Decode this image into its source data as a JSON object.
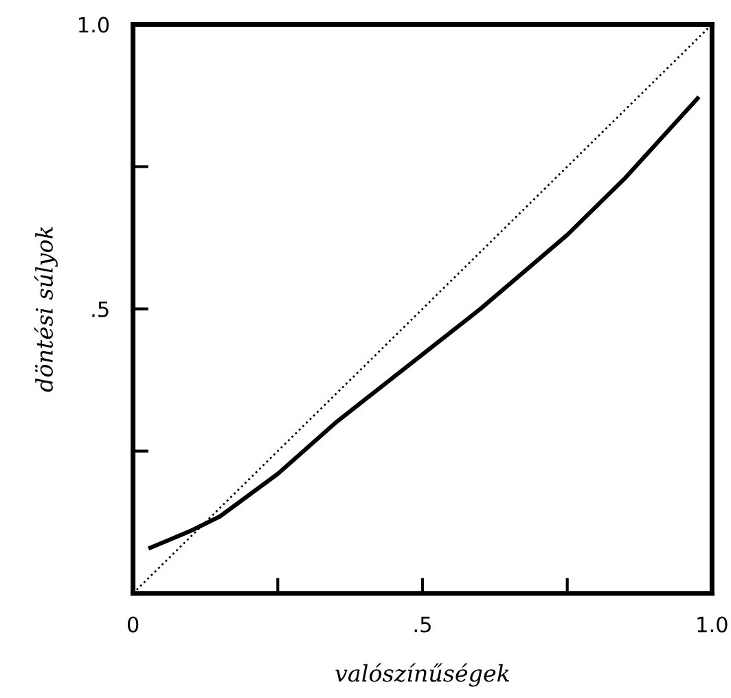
{
  "chart_data": {
    "type": "line",
    "xlabel": "valószínűségek",
    "ylabel": "döntési súlyok",
    "xlim": [
      0,
      1
    ],
    "ylim": [
      0,
      1
    ],
    "xticks": [
      {
        "value": 0,
        "label": "0"
      },
      {
        "value": 0.25,
        "label": null
      },
      {
        "value": 0.5,
        "label": ".5"
      },
      {
        "value": 0.75,
        "label": null
      },
      {
        "value": 1,
        "label": "1.0"
      }
    ],
    "yticks": [
      {
        "value": 0.25,
        "label": null
      },
      {
        "value": 0.5,
        "label": ".5"
      },
      {
        "value": 0.75,
        "label": null
      },
      {
        "value": 1,
        "label": "1.0"
      }
    ],
    "grid": false,
    "legend": false,
    "marker": "none",
    "series": [
      {
        "color": "#000000",
        "line_style": "solid",
        "x": [
          0.03,
          0.1,
          0.15,
          0.25,
          0.35,
          0.5,
          0.6,
          0.75,
          0.85,
          0.975
        ],
        "values": [
          0.08,
          0.11,
          0.135,
          0.21,
          0.3,
          0.42,
          0.5,
          0.63,
          0.73,
          0.87
        ]
      },
      {
        "color": "#000000",
        "line_style": "dotted",
        "x": [
          0,
          1
        ],
        "values": [
          0,
          1
        ]
      }
    ]
  }
}
